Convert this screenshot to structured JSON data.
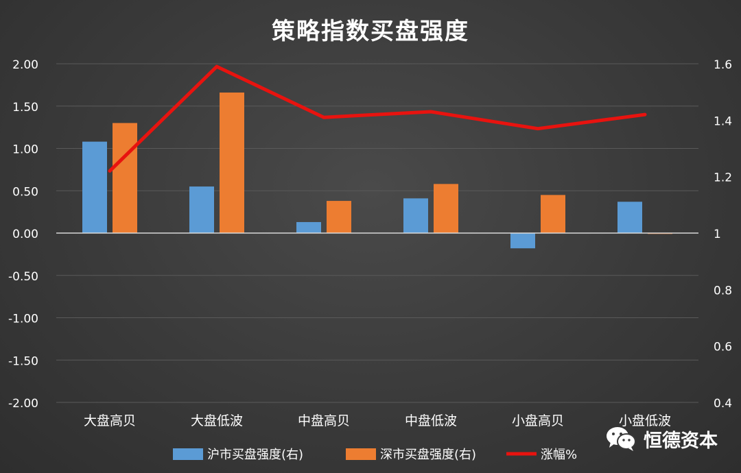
{
  "chart_data": {
    "type": "bar",
    "title": "策略指数买盘强度",
    "categories": [
      "大盘高贝",
      "大盘低波",
      "中盘高贝",
      "中盘低波",
      "小盘高贝",
      "小盘低波"
    ],
    "series": [
      {
        "name": "沪市买盘强度(右)",
        "type": "bar",
        "axis": "left",
        "color": "#5b9bd5",
        "values": [
          1.08,
          0.55,
          0.13,
          0.41,
          -0.18,
          0.37
        ]
      },
      {
        "name": "深市买盘强度(右)",
        "type": "bar",
        "axis": "left",
        "color": "#ed7d31",
        "values": [
          1.3,
          1.66,
          0.38,
          0.58,
          0.45,
          -0.01
        ]
      },
      {
        "name": "涨幅%",
        "type": "line",
        "axis": "right",
        "color": "#e8130f",
        "values": [
          1.22,
          1.59,
          1.41,
          1.43,
          1.37,
          1.42
        ]
      }
    ],
    "y_left": {
      "range": [
        -2.0,
        2.0
      ],
      "ticks": [
        "2.00",
        "1.50",
        "1.00",
        "0.50",
        "0.00",
        "-0.50",
        "-1.00",
        "-1.50",
        "-2.00"
      ]
    },
    "y_right": {
      "range": [
        0.4,
        1.6
      ],
      "ticks": [
        "1.6",
        "1.4",
        "1.2",
        "1",
        "0.8",
        "0.6",
        "0.4"
      ]
    },
    "grid": true,
    "legend": "bottom"
  },
  "watermark": {
    "text": "恒德资本",
    "icon": "wechat-icon"
  }
}
